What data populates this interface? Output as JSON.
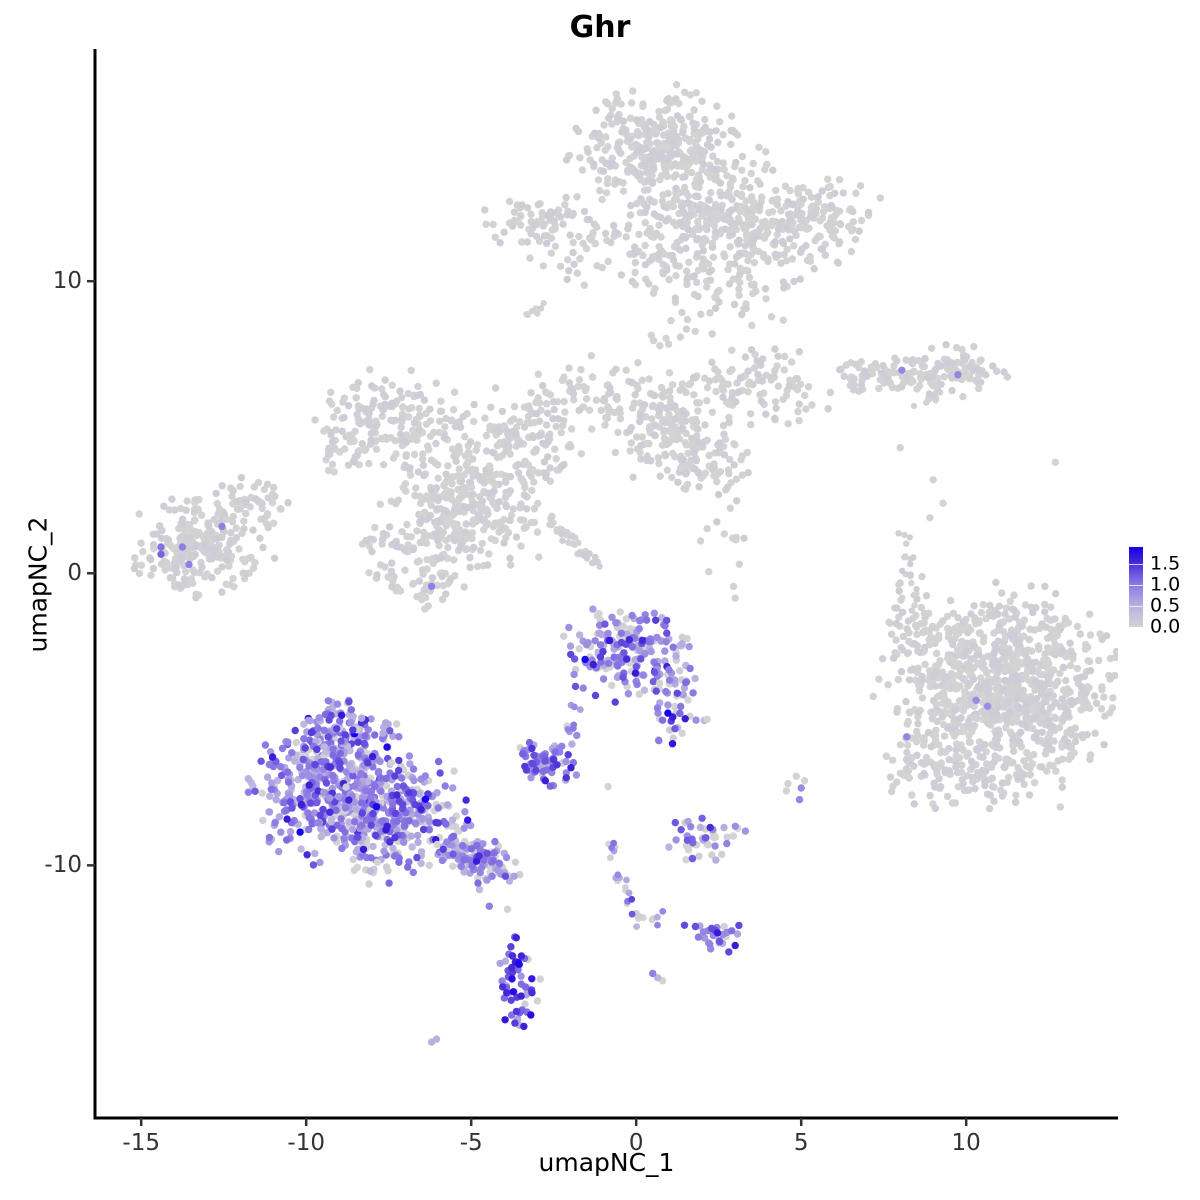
{
  "title": "Ghr",
  "axes": {
    "x": {
      "label": "umapNC_1",
      "ticks": [
        -15,
        -10,
        -5,
        0,
        5,
        10
      ]
    },
    "y": {
      "label": "umapNC_2",
      "ticks": [
        -10,
        0,
        10
      ]
    }
  },
  "legend": {
    "values": [
      1.5,
      1.0,
      0.5,
      0.0
    ],
    "labels": [
      "1.5",
      "1.0",
      "0.5",
      "0.0"
    ],
    "vmax": 1.9,
    "gradient_low_to_high": [
      "#D3D3D3",
      "#C4BEDE",
      "#AEA2E2",
      "#927FE3",
      "#6D55E0",
      "#3E22D4",
      "#1400F0"
    ]
  },
  "colors": {
    "background": "#FFFFFF",
    "axis_line": "#000000",
    "tick_text": "#333333",
    "expression_low": "#D3D3D3",
    "expression_high": "#1400F0"
  },
  "chart_data": {
    "type": "scatter",
    "title": "Ghr",
    "xlabel": "umapNC_1",
    "ylabel": "umapNC_2",
    "xlim": [
      -16.4,
      14.6
    ],
    "ylim": [
      -18.65,
      17.95
    ],
    "grid": false,
    "legend_position": "right",
    "color_stops": [
      [
        0.0,
        "#D3D3D3"
      ],
      [
        0.3,
        "#C4BEDE"
      ],
      [
        0.6,
        "#AEA2E2"
      ],
      [
        0.9,
        "#927FE3"
      ],
      [
        1.2,
        "#6D55E0"
      ],
      [
        1.5,
        "#3E22D4"
      ],
      [
        1.9,
        "#1400F0"
      ]
    ],
    "value_profiles": {
      "GRAY": [
        [
          0,
          1
        ]
      ],
      "MAIN": [
        [
          0,
          0.2
        ],
        [
          0.45,
          0.22
        ],
        [
          0.7,
          0.2
        ],
        [
          0.95,
          0.25
        ],
        [
          1.25,
          0.09
        ],
        [
          1.5,
          0.03
        ],
        [
          1.85,
          0.01
        ]
      ],
      "TAIL": [
        [
          0,
          0.34
        ],
        [
          0.45,
          0.22
        ],
        [
          0.7,
          0.18
        ],
        [
          0.95,
          0.18
        ],
        [
          1.25,
          0.06
        ],
        [
          1.5,
          0.02
        ]
      ],
      "CTR": [
        [
          0,
          0.3
        ],
        [
          0.45,
          0.16
        ],
        [
          0.7,
          0.16
        ],
        [
          0.95,
          0.22
        ],
        [
          1.25,
          0.11
        ],
        [
          1.55,
          0.04
        ],
        [
          1.9,
          0.01
        ]
      ],
      "PUR": [
        [
          0,
          0.2
        ],
        [
          0.7,
          0.4
        ],
        [
          0.95,
          0.4
        ]
      ],
      "SD": [
        [
          0,
          0.18
        ],
        [
          0.5,
          0.2
        ],
        [
          0.8,
          0.28
        ],
        [
          1.05,
          0.22
        ],
        [
          1.3,
          0.1
        ],
        [
          1.6,
          0.02
        ]
      ],
      "STK": [
        [
          0,
          0.3
        ],
        [
          0.6,
          0.28
        ],
        [
          0.9,
          0.3
        ],
        [
          1.2,
          0.12
        ]
      ],
      "STK2": [
        [
          0,
          0.4
        ],
        [
          0.5,
          0.4
        ],
        [
          0.8,
          0.2
        ]
      ],
      "SR1": [
        [
          0,
          0.42
        ],
        [
          0.5,
          0.18
        ],
        [
          0.8,
          0.18
        ],
        [
          1.1,
          0.16
        ],
        [
          1.4,
          0.06
        ]
      ],
      "SR2": [
        [
          0,
          0.18
        ],
        [
          0.6,
          0.2
        ],
        [
          0.9,
          0.3
        ],
        [
          1.2,
          0.24
        ],
        [
          1.5,
          0.08
        ]
      ],
      "BD": [
        [
          0,
          0.1
        ],
        [
          0.5,
          0.12
        ],
        [
          0.8,
          0.2
        ],
        [
          1.1,
          0.3
        ],
        [
          1.4,
          0.2
        ],
        [
          1.7,
          0.08
        ]
      ]
    },
    "clusters": [
      {
        "name": "top-core",
        "shape": "gauss",
        "cx": 0.6,
        "cy": 14.5,
        "sx": 1.15,
        "sy": 0.95,
        "n": 330,
        "v": "GRAY"
      },
      {
        "name": "top-mid",
        "shape": "gauss",
        "cx": 2.2,
        "cy": 12.4,
        "sx": 1.3,
        "sy": 1.05,
        "n": 260,
        "v": "GRAY"
      },
      {
        "name": "top-arm-right",
        "shape": "gauss",
        "cx": 4.4,
        "cy": 11.5,
        "sx": 1.1,
        "sy": 0.75,
        "n": 130,
        "v": "GRAY"
      },
      {
        "name": "top-arm-right-tip",
        "shape": "gauss",
        "cx": 5.7,
        "cy": 12.4,
        "sx": 0.75,
        "sy": 0.6,
        "n": 70,
        "v": "GRAY"
      },
      {
        "name": "top-left-satellite",
        "shape": "gauss",
        "cx": -2.7,
        "cy": 11.9,
        "sx": 1.05,
        "sy": 0.5,
        "n": 85,
        "v": "GRAY"
      },
      {
        "name": "top-lower-scatter",
        "shape": "gauss",
        "cx": -0.6,
        "cy": 10.7,
        "sx": 1.4,
        "sy": 0.65,
        "n": 55,
        "v": "GRAY"
      },
      {
        "name": "top-trail",
        "shape": "gauss",
        "cx": 2.6,
        "cy": 9.7,
        "sx": 1.1,
        "sy": 0.8,
        "n": 60,
        "v": "GRAY"
      },
      {
        "name": "top-streak",
        "shape": "line",
        "x1": -3.3,
        "y1": 8.85,
        "x2": -2.7,
        "y2": 9.2,
        "jitter": 0.07,
        "n": 7,
        "v": "GRAY",
        "r": 3.2
      },
      {
        "name": "top-below-dots",
        "shape": "gauss",
        "cx": 1.05,
        "cy": 8.4,
        "sx": 0.45,
        "sy": 0.35,
        "n": 9,
        "v": "GRAY"
      },
      {
        "name": "mid-left-lobe",
        "shape": "gauss",
        "cx": -7.3,
        "cy": 5.3,
        "sx": 1.05,
        "sy": 0.8,
        "n": 150,
        "v": "GRAY"
      },
      {
        "name": "mid-left-tip",
        "shape": "gauss",
        "cx": -8.7,
        "cy": 4.2,
        "sx": 0.5,
        "sy": 0.45,
        "n": 35,
        "v": "GRAY"
      },
      {
        "name": "mid-left-column",
        "shape": "gauss",
        "cx": -5.7,
        "cy": 3.1,
        "sx": 0.75,
        "sy": 1.15,
        "n": 130,
        "v": "GRAY"
      },
      {
        "name": "mid-bottom-lobe",
        "shape": "gauss",
        "cx": -6.4,
        "cy": 0.9,
        "sx": 0.85,
        "sy": 0.95,
        "n": 140,
        "v": "GRAY"
      },
      {
        "name": "mid-center",
        "shape": "gauss",
        "cx": -4.4,
        "cy": 2.3,
        "sx": 0.85,
        "sy": 1.05,
        "n": 150,
        "v": "GRAY"
      },
      {
        "name": "mid-upper",
        "shape": "gauss",
        "cx": -3.4,
        "cy": 4.5,
        "sx": 0.9,
        "sy": 0.85,
        "n": 130,
        "v": "GRAY"
      },
      {
        "name": "mid-diag-streak",
        "shape": "line",
        "x1": -2.55,
        "y1": 1.75,
        "x2": -1.15,
        "y2": 0.25,
        "jitter": 0.09,
        "n": 40,
        "v": "GRAY",
        "r": 3.3
      },
      {
        "name": "mid-right-lobe",
        "shape": "gauss",
        "cx": 0.9,
        "cy": 5.1,
        "sx": 1.0,
        "sy": 0.95,
        "n": 170,
        "v": "GRAY"
      },
      {
        "name": "mid-right-arm",
        "shape": "gauss",
        "cx": 2.0,
        "cy": 3.7,
        "sx": 0.85,
        "sy": 0.55,
        "n": 60,
        "v": "GRAY"
      },
      {
        "name": "mid-upper-right-arm",
        "shape": "gauss",
        "cx": 3.7,
        "cy": 6.3,
        "sx": 1.1,
        "sy": 0.65,
        "n": 100,
        "v": "GRAY"
      },
      {
        "name": "mid-top-connector",
        "shape": "gauss",
        "cx": -1.4,
        "cy": 6.2,
        "sx": 0.85,
        "sy": 0.55,
        "n": 55,
        "v": "GRAY"
      },
      {
        "name": "mid-below-sparse",
        "shape": "gauss",
        "cx": 2.6,
        "cy": 1.6,
        "sx": 0.5,
        "sy": 0.8,
        "n": 14,
        "v": "GRAY"
      },
      {
        "name": "left-island",
        "shape": "gauss",
        "cx": -13.3,
        "cy": 0.9,
        "sx": 1.0,
        "sy": 0.75,
        "n": 230,
        "v": "GRAY"
      },
      {
        "name": "left-island-ext",
        "shape": "gauss",
        "cx": -11.5,
        "cy": 2.3,
        "sx": 0.65,
        "sy": 0.5,
        "n": 45,
        "v": "GRAY"
      },
      {
        "name": "right-elong-left",
        "shape": "gauss",
        "cx": 7.4,
        "cy": 6.8,
        "sx": 0.8,
        "sy": 0.28,
        "n": 60,
        "v": "GRAY"
      },
      {
        "name": "right-elong-right",
        "shape": "gauss",
        "cx": 9.5,
        "cy": 6.9,
        "sx": 0.75,
        "sy": 0.42,
        "n": 95,
        "v": "GRAY"
      },
      {
        "name": "right-elong-streak",
        "shape": "line",
        "x1": 8.6,
        "y1": 5.75,
        "x2": 9.3,
        "y2": 6.3,
        "jitter": 0.07,
        "n": 10,
        "v": "GRAY",
        "r": 3.2
      },
      {
        "name": "right-big-core",
        "shape": "gauss",
        "cx": 11.3,
        "cy": -4.0,
        "sx": 1.45,
        "sy": 1.6,
        "n": 850,
        "v": "GRAY"
      },
      {
        "name": "right-big-left-fringe",
        "shape": "gauss",
        "cx": 8.8,
        "cy": -3.6,
        "sx": 0.75,
        "sy": 1.6,
        "n": 110,
        "v": "GRAY"
      },
      {
        "name": "right-big-bottom",
        "shape": "gauss",
        "cx": 9.9,
        "cy": -6.8,
        "sx": 1.1,
        "sy": 0.65,
        "n": 90,
        "v": "GRAY"
      },
      {
        "name": "right-big-topleft",
        "shape": "gauss",
        "cx": 8.3,
        "cy": -1.6,
        "sx": 0.5,
        "sy": 0.5,
        "n": 25,
        "v": "GRAY"
      },
      {
        "name": "right-vertical-streak",
        "shape": "line",
        "x1": 8.15,
        "y1": 1.4,
        "x2": 8.35,
        "y2": -1.2,
        "jitter": 0.13,
        "n": 22,
        "v": "GRAY",
        "r": 3.2
      },
      {
        "name": "scatter-gray-singles",
        "shape": "points",
        "pts": [
          [
            8.0,
            4.3,
            0
          ],
          [
            12.7,
            3.8,
            0
          ],
          [
            9.0,
            3.2,
            0
          ],
          [
            9.3,
            2.4,
            0
          ],
          [
            8.9,
            1.9,
            0
          ],
          [
            12.85,
            -8.0,
            0
          ],
          [
            2.2,
            0.05,
            0
          ],
          [
            2.95,
            -0.45,
            0
          ],
          [
            3.0,
            -0.85,
            0
          ]
        ]
      },
      {
        "name": "bottomleft-top",
        "shape": "gauss",
        "cx": -8.9,
        "cy": -5.4,
        "sx": 0.75,
        "sy": 0.55,
        "n": 110,
        "v": "MAIN"
      },
      {
        "name": "bottomleft-core",
        "shape": "gauss",
        "cx": -9.4,
        "cy": -7.4,
        "sx": 1.05,
        "sy": 1.15,
        "n": 420,
        "v": "MAIN"
      },
      {
        "name": "bottomleft-right",
        "shape": "gauss",
        "cx": -7.4,
        "cy": -8.3,
        "sx": 1.05,
        "sy": 0.95,
        "n": 330,
        "v": "MAIN"
      },
      {
        "name": "bottomleft-tail",
        "shape": "line",
        "x1": -5.6,
        "y1": -9.3,
        "x2": -4.05,
        "y2": -10.35,
        "jitter": 0.3,
        "n": 130,
        "v": "TAIL"
      },
      {
        "name": "bottomleft-below",
        "shape": "gauss",
        "cx": -7.8,
        "cy": -10.15,
        "sx": 0.5,
        "sy": 0.28,
        "n": 12,
        "v": "TAIL"
      },
      {
        "name": "bottomleft-below-pair",
        "shape": "points",
        "pts": [
          [
            -4.45,
            -11.4,
            0.9
          ],
          [
            -3.9,
            -11.5,
            0
          ]
        ]
      },
      {
        "name": "center-core",
        "shape": "gauss",
        "cx": -0.35,
        "cy": -2.8,
        "sx": 0.95,
        "sy": 0.75,
        "n": 200,
        "v": "CTR"
      },
      {
        "name": "center-arm",
        "shape": "gauss",
        "cx": 1.05,
        "cy": -4.5,
        "sx": 0.45,
        "sy": 0.75,
        "n": 55,
        "v": "CTR"
      },
      {
        "name": "center-tail",
        "shape": "line",
        "x1": -1.5,
        "y1": -4.3,
        "x2": -2.1,
        "y2": -5.5,
        "jitter": 0.1,
        "n": 9,
        "v": "PUR",
        "r": 3.4
      },
      {
        "name": "center-right-dot",
        "shape": "points",
        "pts": [
          [
            2.15,
            -5.0,
            0
          ]
        ]
      },
      {
        "name": "small-dense",
        "shape": "gauss",
        "cx": -2.75,
        "cy": -6.45,
        "sx": 0.5,
        "sy": 0.38,
        "n": 65,
        "v": "SD"
      },
      {
        "name": "small-dense-pair",
        "shape": "points",
        "pts": [
          [
            -1.8,
            -5.55,
            0.8
          ],
          [
            -1.95,
            -5.85,
            0.5
          ]
        ]
      },
      {
        "name": "gray-single",
        "shape": "points",
        "pts": [
          [
            -0.85,
            -7.3,
            0
          ]
        ]
      },
      {
        "name": "gray-pair-cluster",
        "shape": "points",
        "pts": [
          [
            4.85,
            -6.95,
            0
          ],
          [
            5.1,
            -7.1,
            0
          ],
          [
            4.6,
            -7.2,
            0
          ],
          [
            5.0,
            -7.35,
            0.8
          ],
          [
            4.95,
            -7.75,
            0.85
          ],
          [
            4.55,
            -7.45,
            0
          ]
        ]
      },
      {
        "name": "streakY-1",
        "shape": "line",
        "x1": -0.9,
        "y1": -9.1,
        "x2": -0.4,
        "y2": -10.7,
        "jitter": 0.1,
        "n": 12,
        "v": "STK",
        "r": 3.4
      },
      {
        "name": "streakY-2",
        "shape": "line",
        "x1": -0.4,
        "y1": -10.7,
        "x2": 0.1,
        "y2": -12.05,
        "jitter": 0.1,
        "n": 12,
        "v": "STK",
        "r": 3.4
      },
      {
        "name": "streakY-branch",
        "shape": "line",
        "x1": 0.1,
        "y1": -12.05,
        "x2": 0.78,
        "y2": -11.72,
        "jitter": 0.08,
        "n": 6,
        "v": "STK2",
        "r": 3.4
      },
      {
        "name": "small-right-upper",
        "shape": "gauss",
        "cx": 2.2,
        "cy": -9.15,
        "sx": 0.55,
        "sy": 0.45,
        "n": 45,
        "v": "SR1"
      },
      {
        "name": "small-right-lower",
        "shape": "gauss",
        "cx": 2.35,
        "cy": -12.4,
        "sx": 0.45,
        "sy": 0.3,
        "n": 32,
        "v": "SR2"
      },
      {
        "name": "bottom-dense",
        "shape": "gauss",
        "cx": -3.6,
        "cy": -14.1,
        "sx": 0.33,
        "sy": 0.8,
        "n": 60,
        "v": "BD"
      },
      {
        "name": "tiny-streak",
        "shape": "points",
        "pts": [
          [
            0.5,
            -13.7,
            0.9
          ],
          [
            0.65,
            -13.85,
            0.4
          ],
          [
            0.8,
            -13.95,
            0
          ]
        ]
      },
      {
        "name": "isolated-pill",
        "shape": "points",
        "pts": [
          [
            -6.2,
            -16.05,
            0.45
          ],
          [
            -6.05,
            -15.95,
            0.45
          ]
        ]
      },
      {
        "name": "midsprawl-purple-dot",
        "shape": "points",
        "pts": [
          [
            -6.2,
            -0.45,
            0.9
          ]
        ]
      },
      {
        "name": "left-island-purple",
        "shape": "points",
        "pts": [
          [
            -14.4,
            0.9,
            1.0
          ],
          [
            -14.4,
            0.65,
            1.1
          ],
          [
            -13.75,
            0.9,
            0.9
          ],
          [
            -13.55,
            0.3,
            0.9
          ],
          [
            -12.55,
            1.6,
            0.9
          ]
        ]
      },
      {
        "name": "right-elong-purple",
        "shape": "points",
        "pts": [
          [
            8.05,
            6.95,
            0.85
          ],
          [
            9.75,
            6.8,
            0.85
          ]
        ]
      },
      {
        "name": "right-big-purple",
        "shape": "points",
        "pts": [
          [
            10.3,
            -4.35,
            0.8
          ],
          [
            10.65,
            -4.55,
            0.8
          ],
          [
            8.2,
            -5.6,
            0.85
          ]
        ]
      }
    ]
  }
}
